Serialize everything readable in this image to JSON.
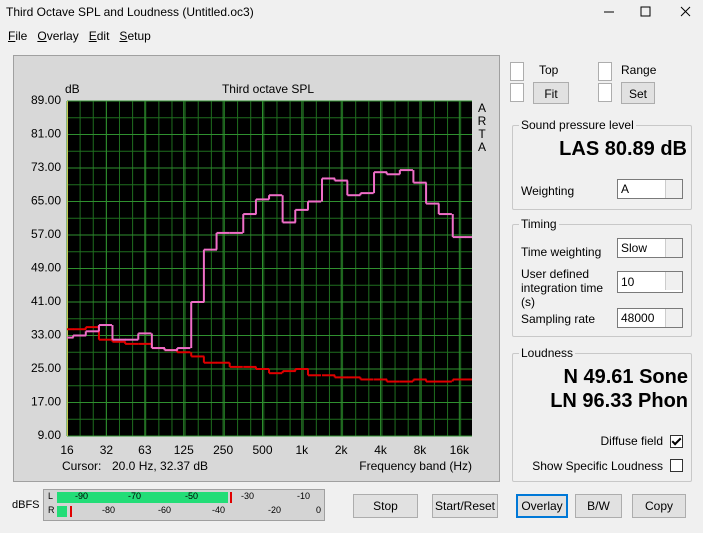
{
  "window": {
    "title": "Third Octave SPL and Loudness (Untitled.oc3)"
  },
  "menu": [
    "File",
    "Overlay",
    "Edit",
    "Setup"
  ],
  "chart_data": {
    "type": "step",
    "title": "Third octave SPL",
    "y_label": "dB",
    "side_label": [
      "A",
      "R",
      "T",
      "A"
    ],
    "x_label": "Frequency band (Hz)",
    "cursor_label": "Cursor:",
    "cursor_value": "20.0 Hz, 32.37 dB",
    "log_x": true,
    "grid": true,
    "xlim": [
      16,
      20000
    ],
    "xticks": [
      16,
      32,
      63,
      125,
      250,
      500,
      {
        "value": 1000,
        "label": "1k"
      },
      {
        "value": 2000,
        "label": "2k"
      },
      {
        "value": 4000,
        "label": "4k"
      },
      {
        "value": 8000,
        "label": "8k"
      },
      {
        "value": 16000,
        "label": "16k"
      }
    ],
    "ylim": [
      9,
      89
    ],
    "yticks": [
      {
        "value": 89,
        "label": "89.00"
      },
      {
        "value": 81,
        "label": "81.00"
      },
      {
        "value": 73,
        "label": "73.00"
      },
      {
        "value": 65,
        "label": "65.00"
      },
      {
        "value": 57,
        "label": "57.00"
      },
      {
        "value": 49,
        "label": "49.00"
      },
      {
        "value": 41,
        "label": "41.00"
      },
      {
        "value": 33,
        "label": "33.00"
      },
      {
        "value": 25,
        "label": "25.00"
      },
      {
        "value": 17,
        "label": "17.00"
      },
      {
        "value": 9,
        "label": "9.00"
      }
    ],
    "x": [
      16,
      20,
      25,
      31.5,
      40,
      50,
      63,
      80,
      100,
      125,
      160,
      200,
      250,
      315,
      400,
      500,
      630,
      800,
      1000,
      1250,
      1600,
      2000,
      2500,
      3150,
      4000,
      5000,
      6300,
      8000,
      10000,
      12500,
      16000,
      20000
    ],
    "series": [
      {
        "color": "#e00000",
        "values": [
          34.5,
          34.5,
          35,
          32,
          31.5,
          31,
          31,
          30,
          29.5,
          29,
          28,
          26.5,
          26.5,
          25.5,
          25.5,
          25,
          24,
          24.5,
          25,
          23.5,
          23.5,
          23,
          23,
          22.5,
          22.5,
          22,
          22,
          22.5,
          22,
          22,
          22.5,
          22.5
        ]
      },
      {
        "color": "#f06ec8",
        "values": [
          32.5,
          33,
          34,
          35.5,
          32,
          32,
          33.5,
          30,
          29.5,
          30,
          41,
          53.5,
          57.5,
          57.5,
          62,
          65.5,
          66.5,
          60,
          63,
          65,
          70.5,
          70,
          66.5,
          67,
          72,
          71.5,
          72.5,
          69.5,
          64.5,
          62,
          56.5,
          56.5
        ]
      }
    ]
  },
  "controls": {
    "top_label": "Top",
    "fit_button": "Fit",
    "range_label": "Range",
    "set_button": "Set",
    "spl": {
      "title": "Sound pressure level",
      "reading": "LAS 80.89 dB",
      "weighting_label": "Weighting",
      "weighting": "A"
    },
    "timing": {
      "title": "Timing",
      "time_weighting_label": "Time weighting",
      "time_weighting": "Slow",
      "integration_label": "User defined integration time (s)",
      "integration": "10",
      "sampling_label": "Sampling rate",
      "sampling": "48000"
    },
    "loudness": {
      "title": "Loudness",
      "n": "N 49.61 Sone",
      "ln": "LN 96.33 Phon",
      "diffuse_label": "Diffuse field",
      "diffuse_checked": true,
      "specific_label": "Show Specific Loudness",
      "specific_checked": false
    }
  },
  "meter": {
    "label": "dBFS",
    "left": {
      "label": "L",
      "scale": [
        "-90",
        "-70",
        "-50",
        "-30",
        "-10"
      ]
    },
    "right": {
      "label": "R",
      "scale": [
        "-80",
        "-60",
        "-40",
        "-20",
        "0"
      ]
    }
  },
  "buttons": [
    "Stop",
    "Start/Reset",
    "Overlay",
    "B/W",
    "Copy"
  ]
}
